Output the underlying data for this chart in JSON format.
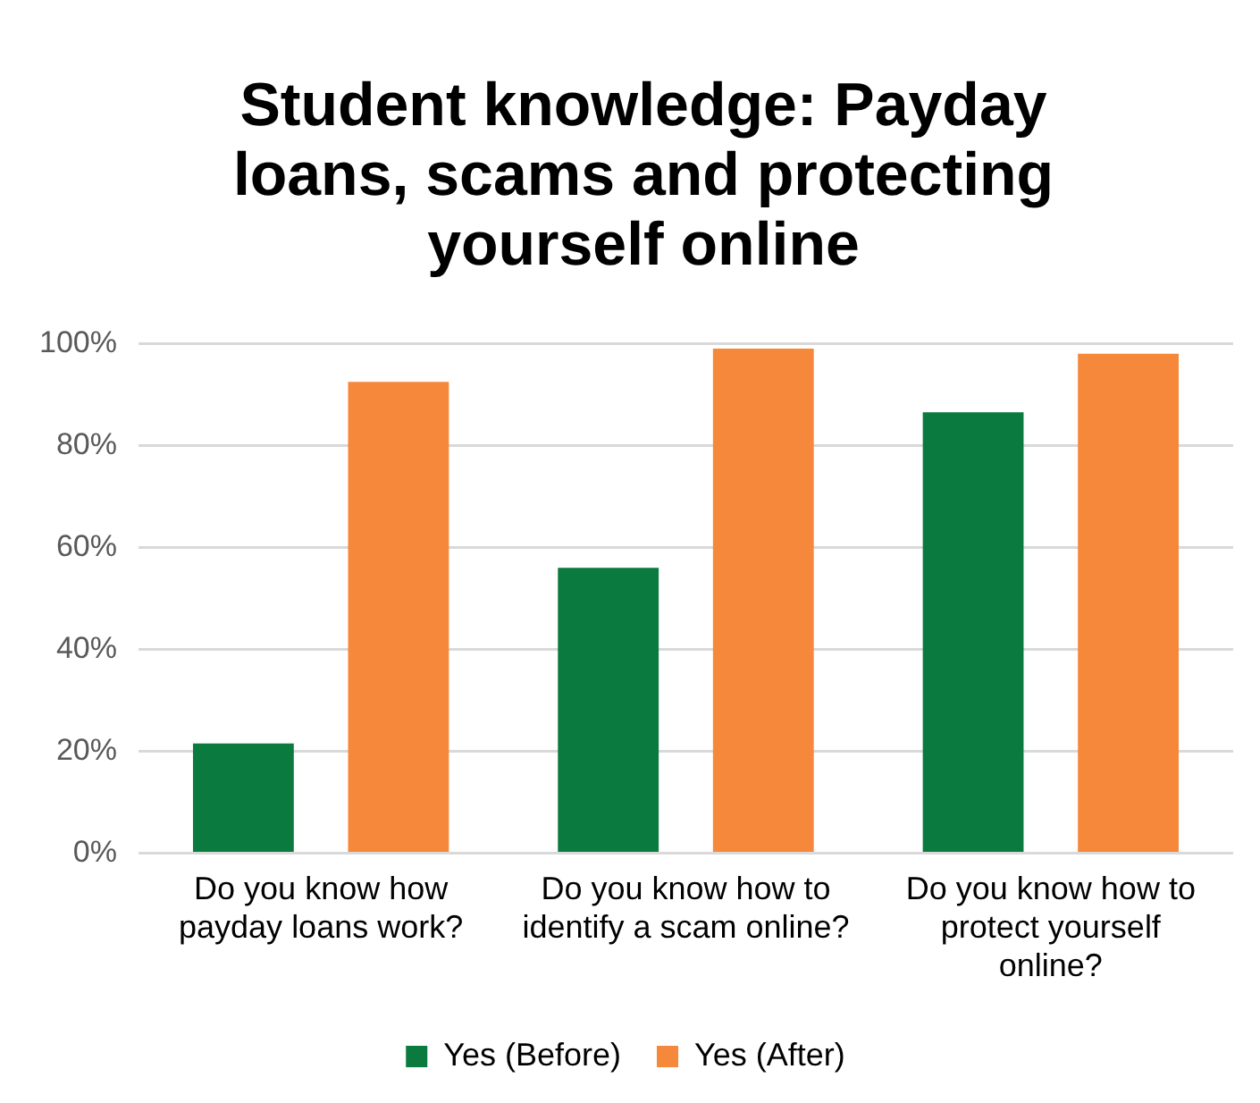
{
  "chart_data": {
    "type": "bar",
    "title": "Student knowledge: Payday loans, scams and protecting yourself online",
    "categories": [
      "Do you know how payday loans work?",
      "Do you know how to identify a scam online?",
      "Do you know how to protect yourself online?"
    ],
    "series": [
      {
        "name": "Yes (Before)",
        "color": "#0a7a3e",
        "values": [
          21.5,
          56,
          86.5
        ]
      },
      {
        "name": "Yes (After)",
        "color": "#f5883a",
        "values": [
          92.5,
          99,
          98
        ]
      }
    ],
    "ylim": [
      0,
      100
    ],
    "yticks": [
      {
        "value": 0,
        "label": "0%"
      },
      {
        "value": 20,
        "label": "20%"
      },
      {
        "value": 40,
        "label": "40%"
      },
      {
        "value": 60,
        "label": "60%"
      },
      {
        "value": 80,
        "label": "80%"
      },
      {
        "value": 100,
        "label": "100%"
      }
    ],
    "grid": "y",
    "legend": "bottom"
  }
}
